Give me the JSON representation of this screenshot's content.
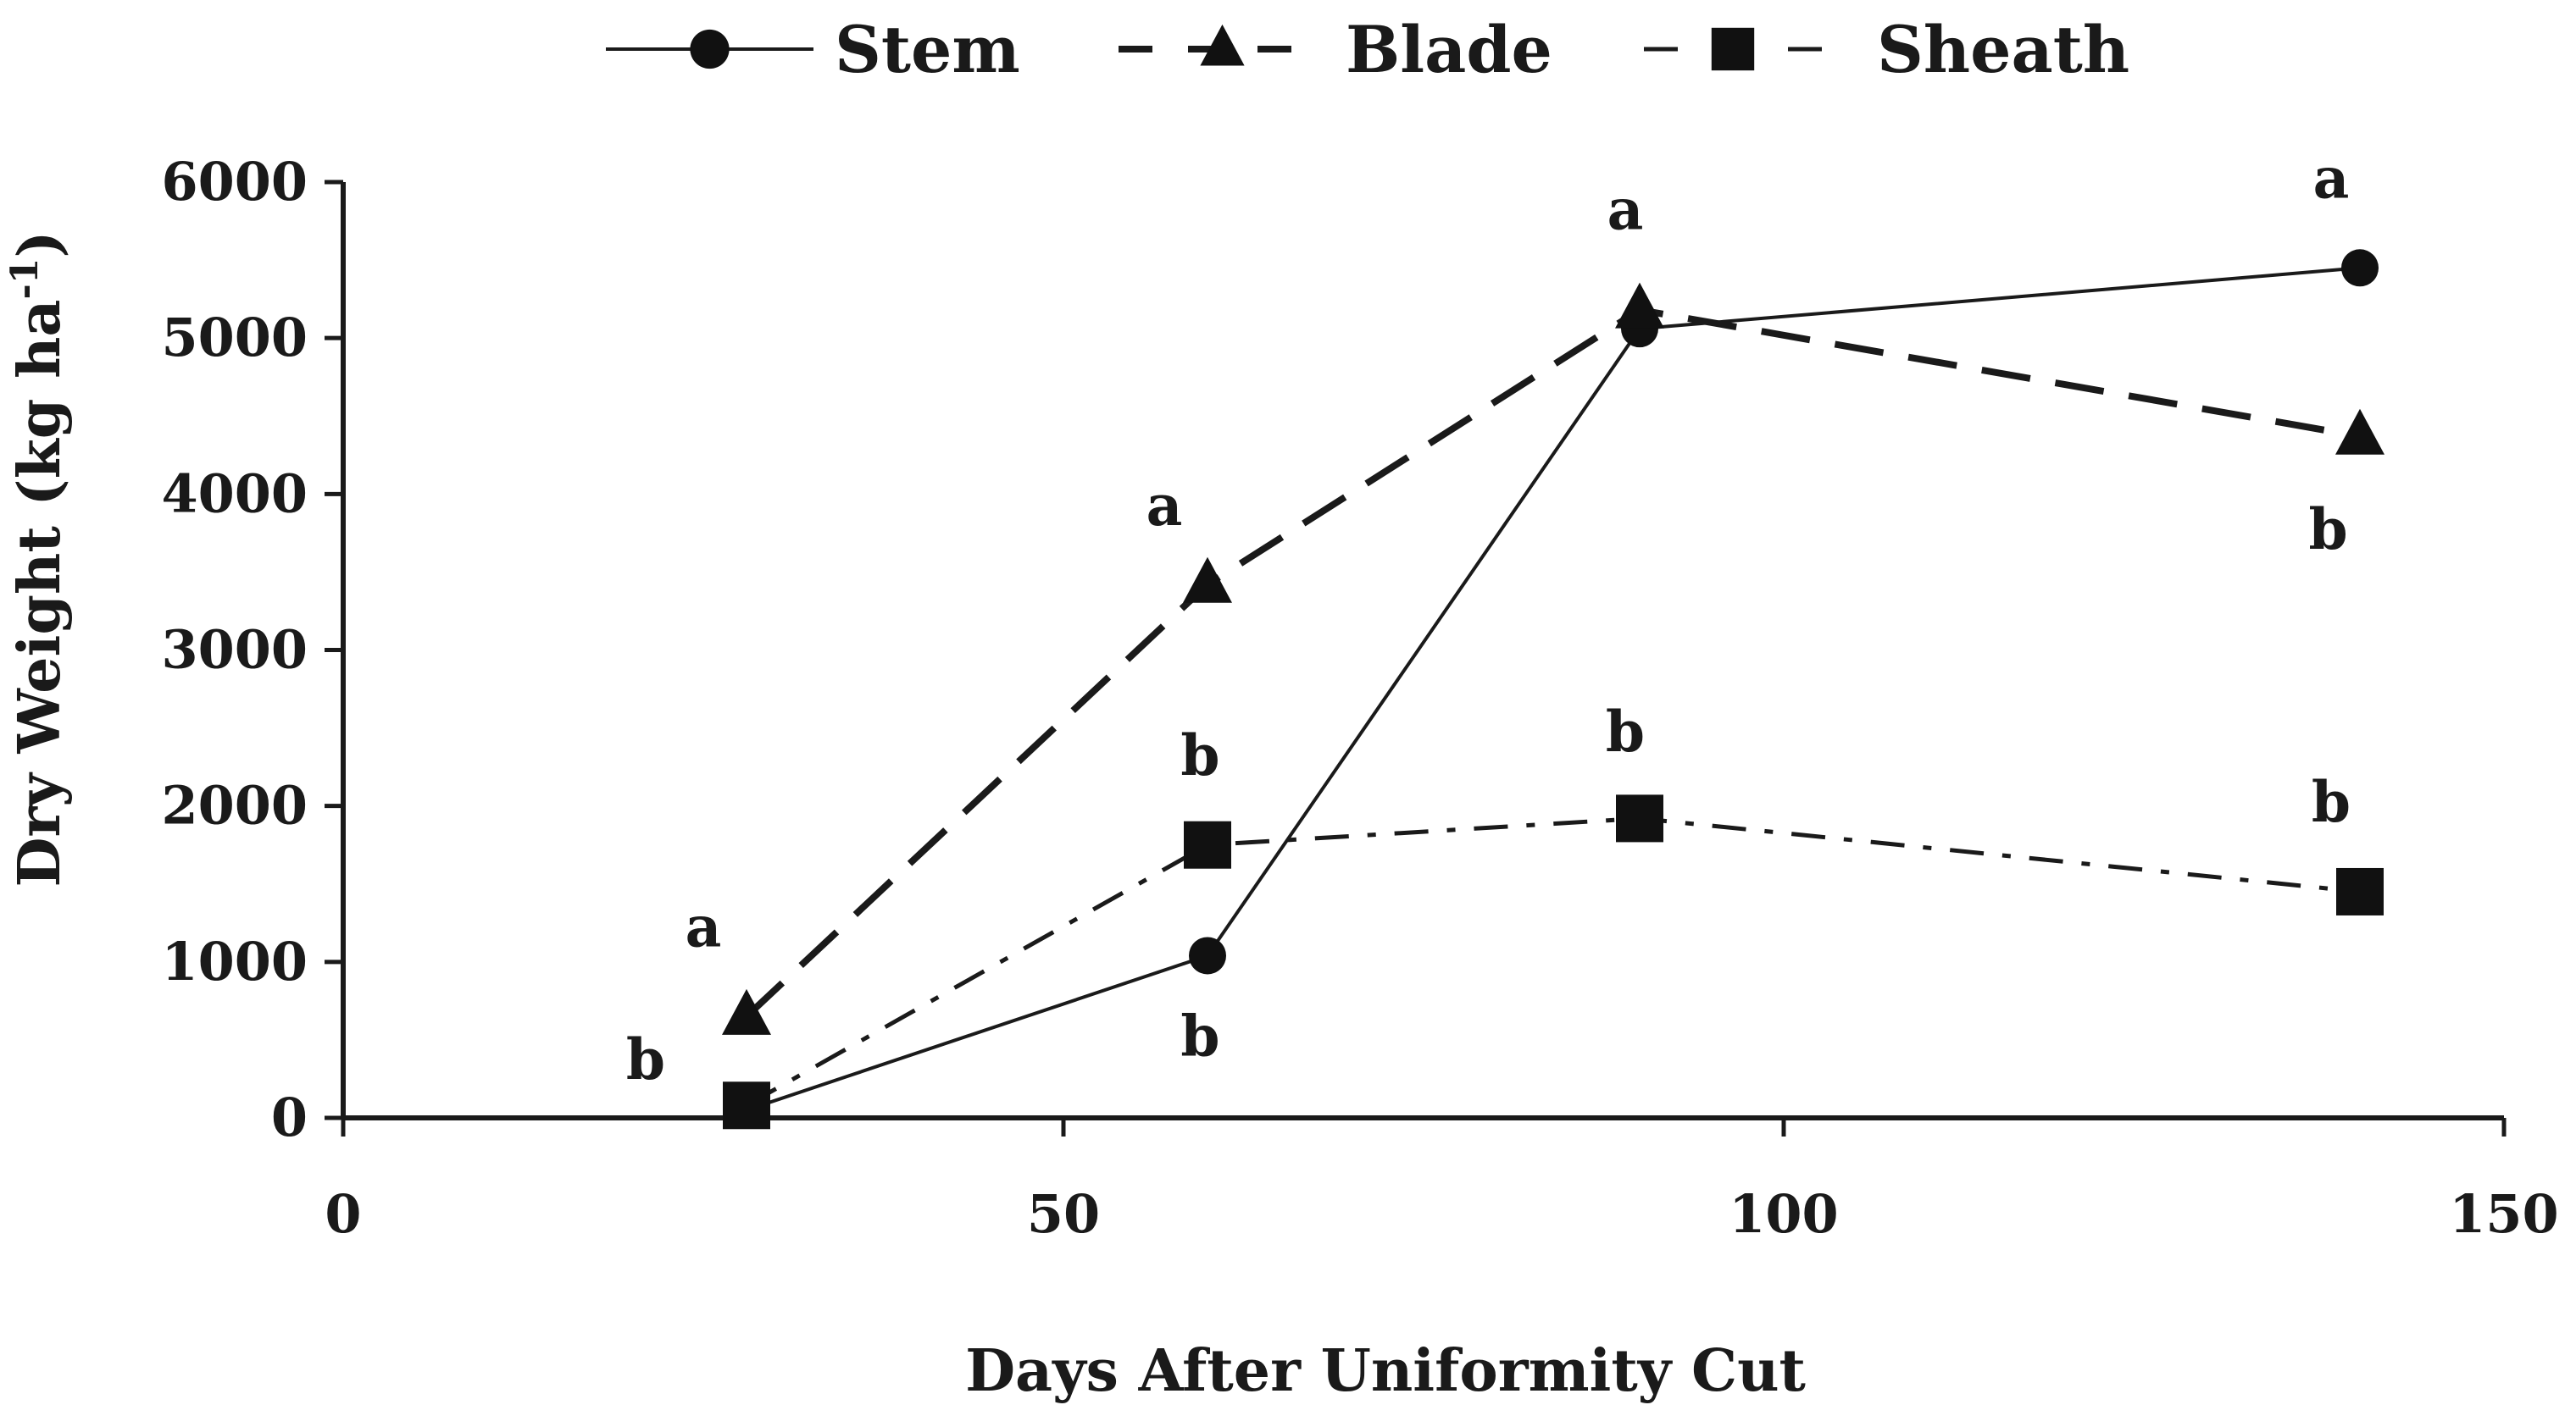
{
  "chart_data": {
    "type": "line",
    "title": "",
    "xlabel": "Days After Uniformity Cut",
    "ylabel": "Dry Weight (kg ha",
    "ylabel_sup": "-1",
    "ylabel_end": ")",
    "xlim": [
      0,
      150
    ],
    "ylim": [
      0,
      6000
    ],
    "x_ticks": [
      0,
      50,
      100,
      150
    ],
    "x_tick_labels": [
      "0",
      "50",
      "100",
      "150"
    ],
    "y_ticks": [
      0,
      1000,
      2000,
      3000,
      4000,
      5000,
      6000
    ],
    "y_tick_labels": [
      "0",
      "1000",
      "2000",
      "3000",
      "4000",
      "5000",
      "6000"
    ],
    "grid": false,
    "legend_position": "top",
    "series": [
      {
        "name": "Stem",
        "marker": "circle",
        "line_style": "solid",
        "x": [
          28,
          60,
          90,
          140
        ],
        "values": [
          50,
          1040,
          5060,
          5450
        ]
      },
      {
        "name": "Blade",
        "marker": "triangle",
        "line_style": "dashed",
        "x": [
          28,
          60,
          90,
          140
        ],
        "values": [
          650,
          3420,
          5180,
          4370
        ]
      },
      {
        "name": "Sheath",
        "marker": "square",
        "line_style": "dash-dot",
        "x": [
          28,
          60,
          90,
          140
        ],
        "values": [
          80,
          1750,
          1920,
          1450
        ]
      }
    ],
    "annotations": [
      {
        "text": "a",
        "x": 25,
        "y": 1100,
        "series": "Blade"
      },
      {
        "text": "b",
        "x": 21,
        "y": 250,
        "series": "Stem"
      },
      {
        "text": "a",
        "x": 57,
        "y": 3800,
        "series": "Blade"
      },
      {
        "text": "b",
        "x": 59.5,
        "y": 2200,
        "series": "Sheath"
      },
      {
        "text": "b",
        "x": 59.5,
        "y": 400,
        "series": "Stem"
      },
      {
        "text": "a",
        "x": 89,
        "y": 5700,
        "series": "Blade"
      },
      {
        "text": "b",
        "x": 89,
        "y": 2350,
        "series": "Sheath"
      },
      {
        "text": "a",
        "x": 138,
        "y": 5900,
        "series": "Stem"
      },
      {
        "text": "b",
        "x": 137.8,
        "y": 3650,
        "series": "Blade"
      },
      {
        "text": "b",
        "x": 138,
        "y": 1900,
        "series": "Sheath"
      }
    ],
    "colors": {
      "line": "#1a1a1a",
      "marker": "#111111",
      "background": "#ffffff"
    }
  }
}
